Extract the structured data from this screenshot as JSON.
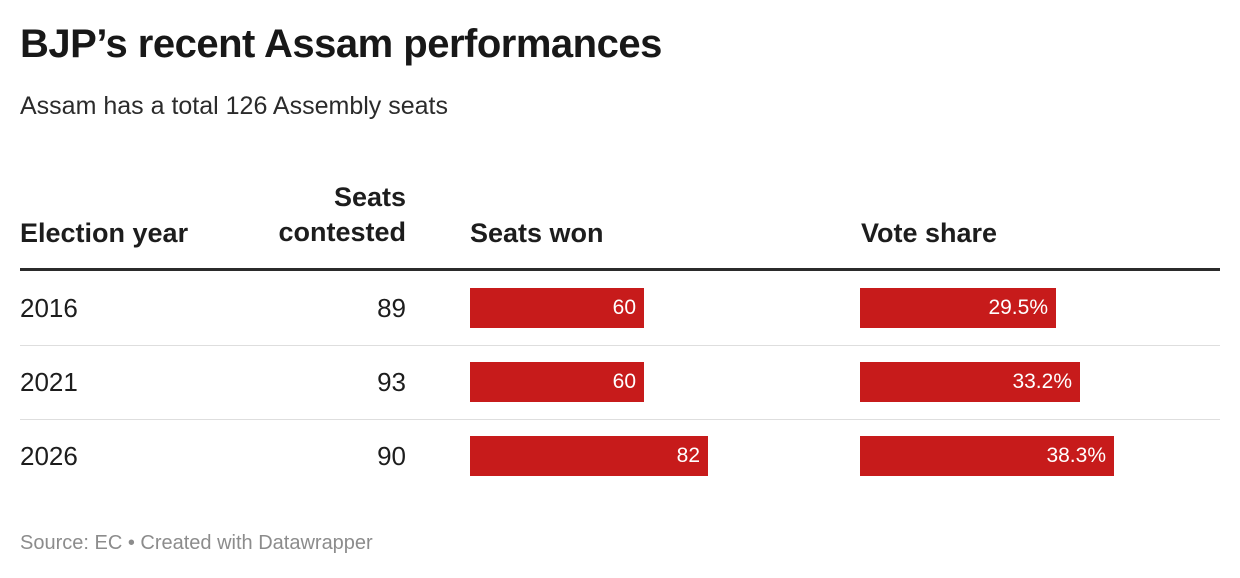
{
  "title": "BJP’s recent Assam performances",
  "subtitle": "Assam has a total 126 Assembly seats",
  "headers": {
    "year": "Election year",
    "contested_line1": "Seats",
    "contested_line2": "contested",
    "won": "Seats won",
    "share": "Vote share"
  },
  "footer": {
    "source": "Source: EC • Created with Datawrapper"
  },
  "colors": {
    "bar": "#c71b1b"
  },
  "chart_data": {
    "type": "table",
    "title": "BJP’s recent Assam performances",
    "subtitle": "Assam has a total 126 Assembly seats",
    "columns": [
      "Election year",
      "Seats contested",
      "Seats won",
      "Vote share"
    ],
    "rows": [
      {
        "year": "2016",
        "contested": "89",
        "won": 60,
        "won_label": "60",
        "share": 29.5,
        "share_label": "29.5%"
      },
      {
        "year": "2021",
        "contested": "93",
        "won": 60,
        "won_label": "60",
        "share": 33.2,
        "share_label": "33.2%"
      },
      {
        "year": "2026",
        "contested": "90",
        "won": 82,
        "won_label": "82",
        "share": 38.3,
        "share_label": "38.3%"
      }
    ],
    "won_max": 126,
    "share_max": 100
  }
}
